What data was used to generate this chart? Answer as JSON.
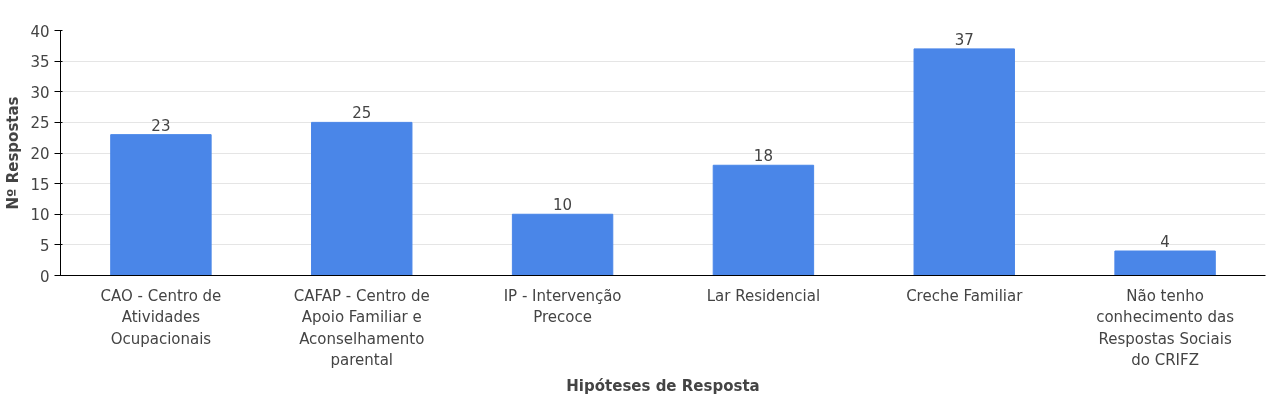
{
  "chart_data": {
    "type": "bar",
    "xlabel": "Hipóteses de Resposta",
    "ylabel": "Nº Respostas",
    "categories": [
      "CAO - Centro de Atividades Ocupacionais",
      "CAFAP - Centro de Apoio Familiar e Aconselhamento parental",
      "IP - Intervenção Precoce",
      "Lar Residencial",
      "Creche Familiar",
      "Não tenho conhecimento das Respostas Sociais do CRIFZ"
    ],
    "values": [
      23,
      25,
      10,
      18,
      37,
      4
    ],
    "color": "#4a86e8",
    "ylim": [
      0,
      40
    ],
    "yticks": [
      0,
      5,
      10,
      15,
      20,
      25,
      30,
      35,
      40
    ],
    "grid": "y",
    "data_labels": true
  }
}
